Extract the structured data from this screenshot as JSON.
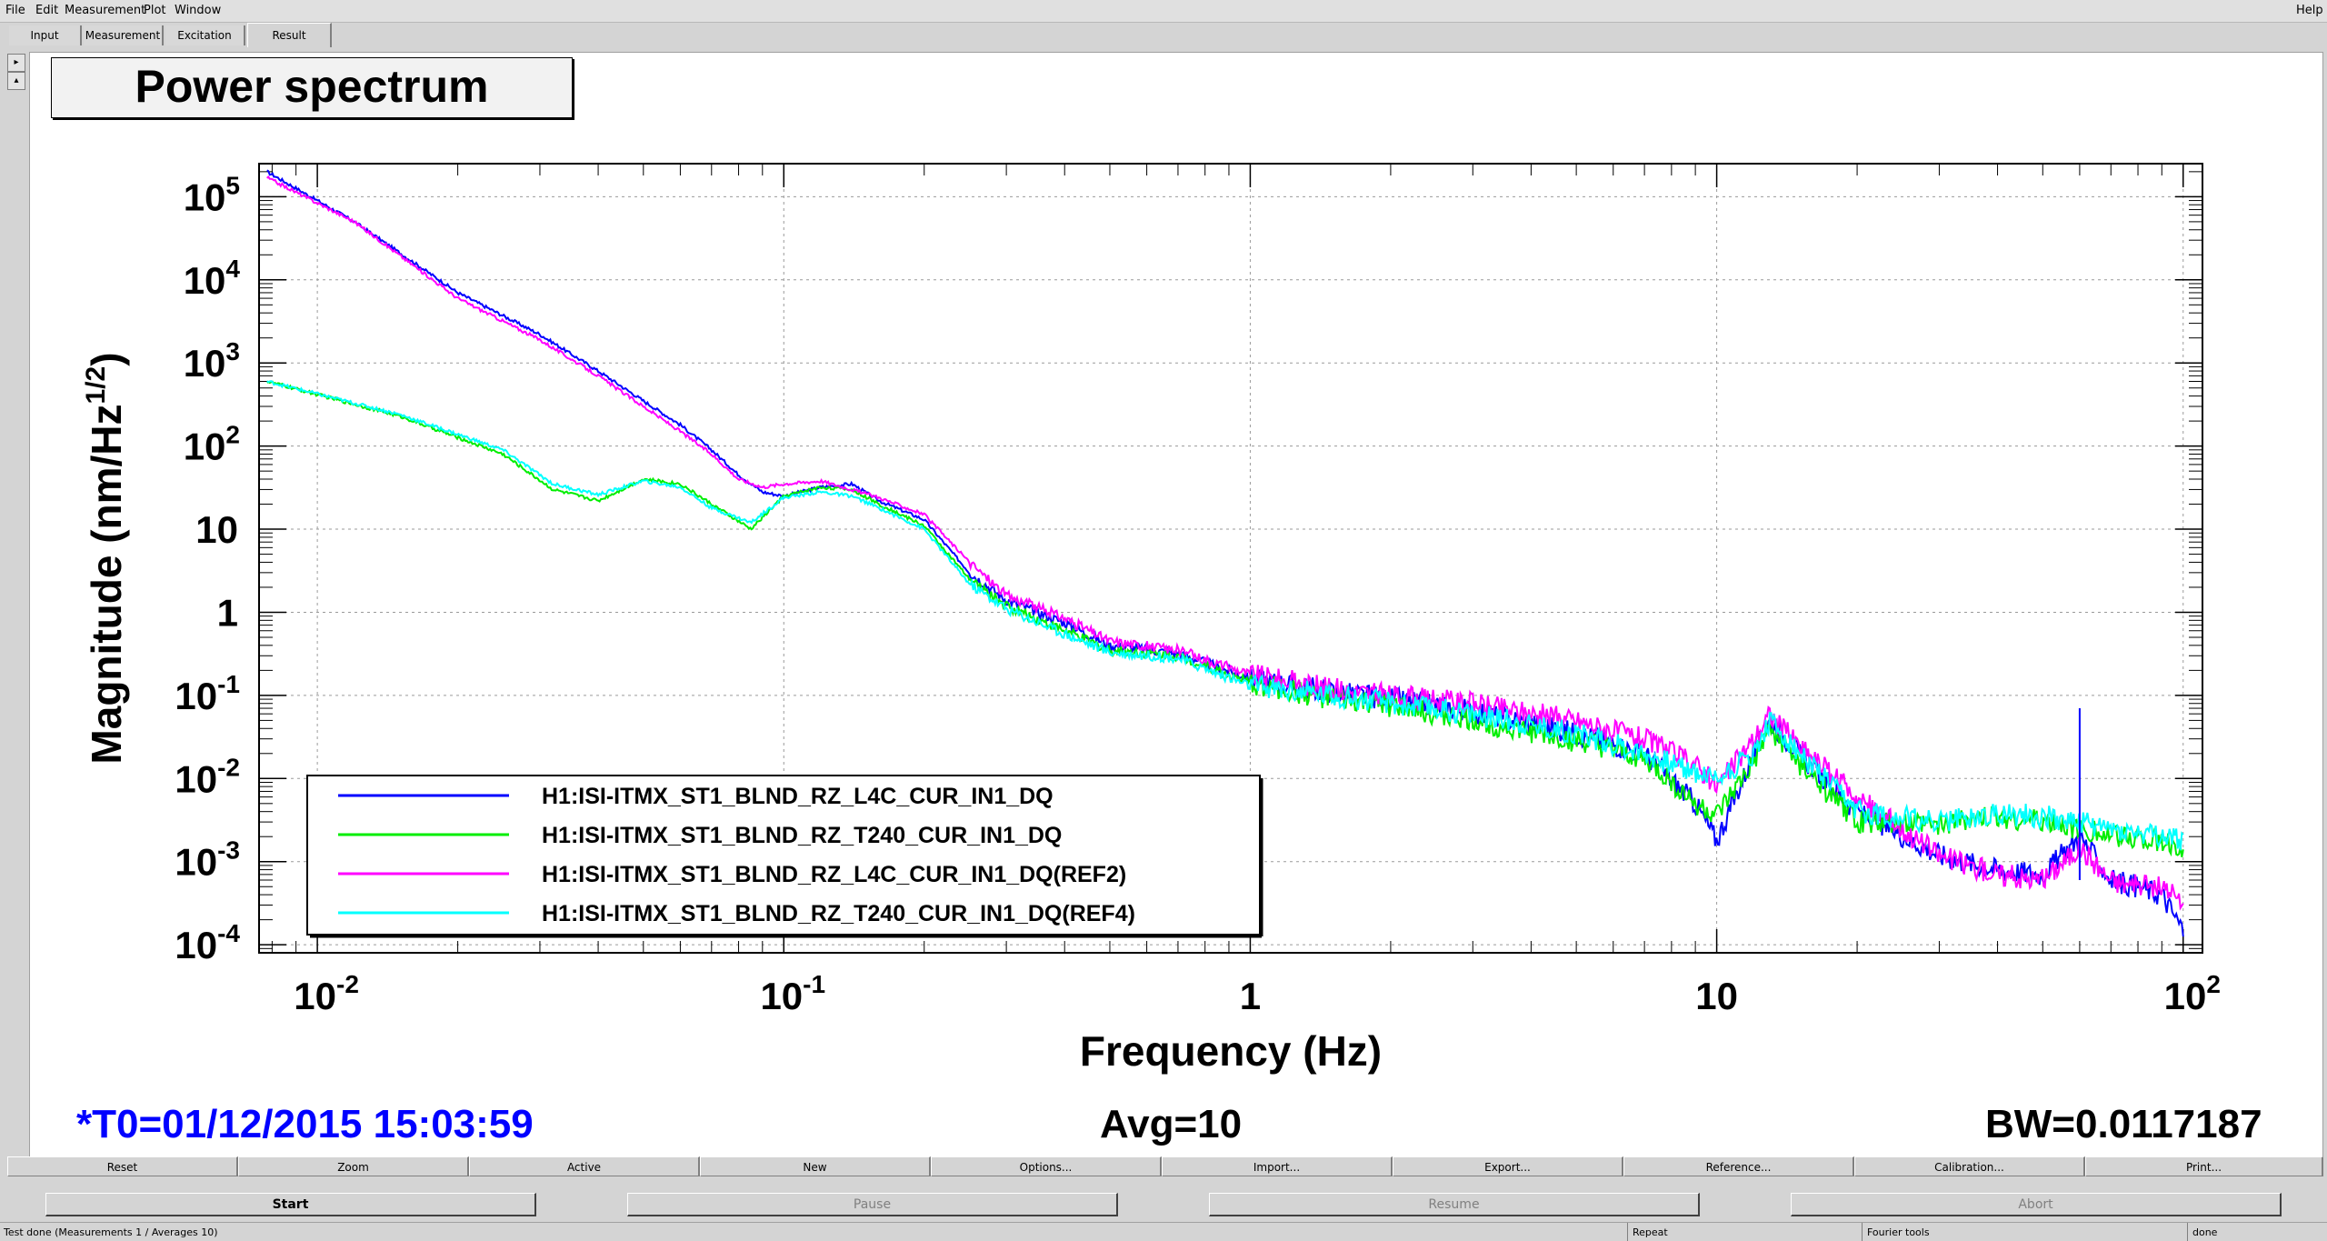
{
  "menu": {
    "file": "File",
    "edit": "Edit",
    "measurement": "Measurement",
    "plot": "Plot",
    "window": "Window",
    "help": "Help"
  },
  "tabs": {
    "input": "Input",
    "measurement": "Measurement",
    "excitation": "Excitation",
    "result": "Result"
  },
  "plot_title": "Power spectrum",
  "chart_data": {
    "type": "line",
    "title": "Power spectrum",
    "xlabel": "Frequency (Hz)",
    "ylabel": "Magnitude (nm/Hz^1/2)",
    "xscale": "log",
    "yscale": "log",
    "xlim": [
      0.0075,
      110
    ],
    "ylim": [
      8e-05,
      250000
    ],
    "grid": true,
    "legend_position": "bottom-left",
    "xticks": [
      "10^-2",
      "10^-1",
      "1",
      "10",
      "10^2"
    ],
    "yticks": [
      "10^5",
      "10^4",
      "10^3",
      "10^2",
      "10",
      "1",
      "10^-1",
      "10^-2",
      "10^-3",
      "10^-4"
    ],
    "series": [
      {
        "name": "H1:ISI-ITMX_ST1_BLND_RZ_L4C_CUR_IN1_DQ",
        "color": "#0000ff",
        "x": [
          0.0078,
          0.012,
          0.02,
          0.03,
          0.04,
          0.05,
          0.06,
          0.07,
          0.08,
          0.09,
          0.1,
          0.12,
          0.14,
          0.16,
          0.2,
          0.25,
          0.3,
          0.4,
          0.5,
          0.7,
          1,
          1.5,
          2,
          3,
          5,
          7,
          9,
          10,
          12,
          13,
          15,
          20,
          30,
          40,
          50,
          60,
          70,
          80,
          90,
          100
        ],
        "y": [
          200000,
          50000,
          7000,
          2200,
          800,
          350,
          180,
          90,
          45,
          28,
          25,
          32,
          35,
          22,
          13,
          3,
          1.4,
          0.75,
          0.4,
          0.32,
          0.16,
          0.11,
          0.09,
          0.065,
          0.035,
          0.02,
          0.005,
          0.0018,
          0.02,
          0.05,
          0.02,
          0.004,
          0.0012,
          0.0008,
          0.0007,
          0.002,
          0.0006,
          0.0005,
          0.0004,
          0.00015
        ]
      },
      {
        "name": "H1:ISI-ITMX_ST1_BLND_RZ_T240_CUR_IN1_DQ",
        "color": "#00ee00",
        "x": [
          0.0078,
          0.015,
          0.025,
          0.032,
          0.04,
          0.05,
          0.06,
          0.07,
          0.085,
          0.1,
          0.12,
          0.14,
          0.16,
          0.2,
          0.25,
          0.3,
          0.4,
          0.5,
          0.7,
          1,
          1.5,
          2,
          3,
          5,
          7,
          9,
          10,
          12,
          13,
          15,
          20,
          30,
          40,
          50,
          60,
          70,
          80,
          90,
          100
        ],
        "y": [
          600,
          230,
          80,
          30,
          22,
          40,
          35,
          20,
          10,
          25,
          32,
          30,
          20,
          11,
          2.5,
          1.2,
          0.6,
          0.35,
          0.3,
          0.14,
          0.09,
          0.075,
          0.05,
          0.028,
          0.017,
          0.005,
          0.0035,
          0.015,
          0.04,
          0.015,
          0.003,
          0.0028,
          0.0035,
          0.003,
          0.0025,
          0.002,
          0.002,
          0.0017,
          0.0015
        ]
      },
      {
        "name": "H1:ISI-ITMX_ST1_BLND_RZ_L4C_CUR_IN1_DQ(REF2)",
        "color": "#ff00ff",
        "x": [
          0.0078,
          0.012,
          0.02,
          0.03,
          0.04,
          0.05,
          0.06,
          0.07,
          0.08,
          0.09,
          0.1,
          0.12,
          0.14,
          0.16,
          0.2,
          0.25,
          0.3,
          0.4,
          0.5,
          0.7,
          1,
          1.5,
          2,
          3,
          5,
          7,
          9,
          10,
          12,
          13,
          15,
          20,
          30,
          40,
          50,
          60,
          70,
          80,
          90,
          100
        ],
        "y": [
          170000,
          50000,
          6000,
          1900,
          700,
          300,
          150,
          80,
          40,
          32,
          35,
          38,
          30,
          24,
          15,
          4,
          1.6,
          0.85,
          0.45,
          0.35,
          0.18,
          0.12,
          0.1,
          0.08,
          0.05,
          0.03,
          0.015,
          0.008,
          0.03,
          0.06,
          0.025,
          0.006,
          0.0012,
          0.0007,
          0.0006,
          0.0015,
          0.0006,
          0.0005,
          0.0005,
          0.0003
        ]
      },
      {
        "name": "H1:ISI-ITMX_ST1_BLND_RZ_T240_CUR_IN1_DQ(REF4)",
        "color": "#00ffff",
        "x": [
          0.0078,
          0.015,
          0.025,
          0.032,
          0.04,
          0.05,
          0.06,
          0.07,
          0.085,
          0.1,
          0.12,
          0.14,
          0.16,
          0.2,
          0.25,
          0.3,
          0.4,
          0.5,
          0.7,
          1,
          1.5,
          2,
          3,
          5,
          7,
          9,
          10,
          12,
          13,
          15,
          20,
          30,
          40,
          50,
          60,
          70,
          80,
          90,
          100
        ],
        "y": [
          600,
          240,
          90,
          35,
          26,
          38,
          32,
          18,
          12,
          24,
          28,
          25,
          18,
          10,
          2.2,
          1.1,
          0.55,
          0.33,
          0.28,
          0.13,
          0.1,
          0.08,
          0.06,
          0.035,
          0.02,
          0.012,
          0.01,
          0.02,
          0.05,
          0.02,
          0.004,
          0.003,
          0.0038,
          0.0035,
          0.003,
          0.0025,
          0.0022,
          0.002,
          0.0018
        ]
      }
    ]
  },
  "stats": {
    "t0": "*T0=01/12/2015 15:03:59",
    "avg": "Avg=10",
    "bw": "BW=0.0117187"
  },
  "toolbar": [
    "Reset",
    "Zoom",
    "Active",
    "New",
    "Options...",
    "Import...",
    "Export...",
    "Reference...",
    "Calibration...",
    "Print..."
  ],
  "controls": {
    "start": "Start",
    "pause": "Pause",
    "resume": "Resume",
    "abort": "Abort"
  },
  "status": {
    "main": "Test done (Measurements 1 / Averages 10)",
    "repeat": "Repeat",
    "fourier": "Fourier tools",
    "done": "done"
  },
  "colors": {
    "stats_t0": "#0000ff",
    "accent": "#0000ff"
  }
}
